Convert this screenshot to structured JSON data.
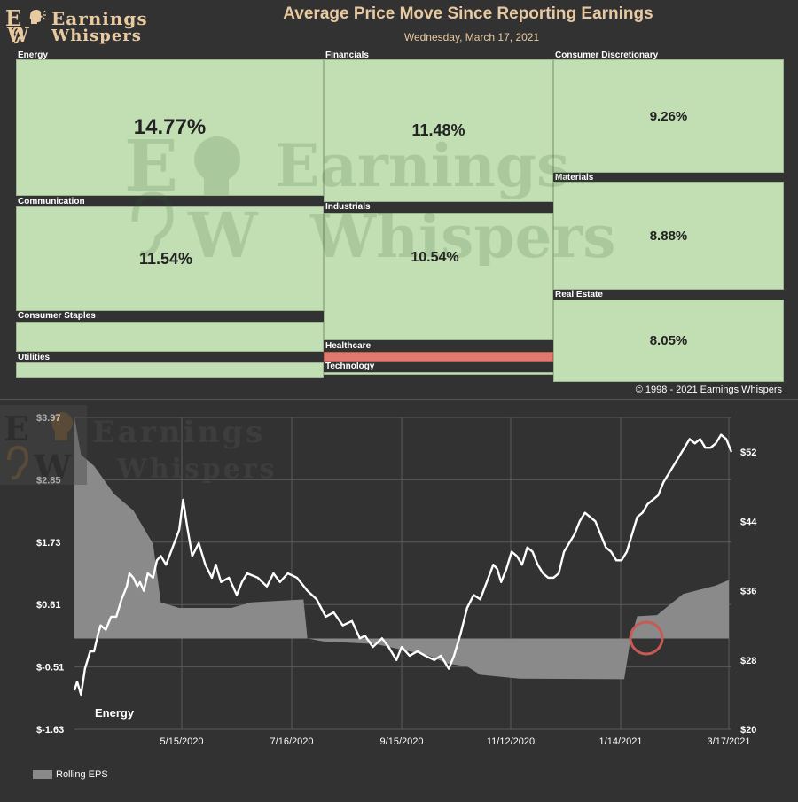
{
  "brand": {
    "logo_line1": "Earnings",
    "logo_line2": "Whispers",
    "logo_e": "E",
    "logo_w": "W"
  },
  "heatmap": {
    "title": "Average Price Move Since Reporting Earnings",
    "date": "Wednesday, March 17, 2021",
    "copyright": "© 1998 - 2021 Earnings Whispers",
    "sectors": [
      {
        "id": "energy",
        "name": "Energy",
        "value": "14.77%",
        "sign": "pos"
      },
      {
        "id": "communication",
        "name": "Communication",
        "value": "11.54%",
        "sign": "pos"
      },
      {
        "id": "consumer-staples",
        "name": "Consumer Staples",
        "value": "",
        "sign": "pos"
      },
      {
        "id": "utilities",
        "name": "Utilities",
        "value": "",
        "sign": "pos"
      },
      {
        "id": "financials",
        "name": "Financials",
        "value": "11.48%",
        "sign": "pos"
      },
      {
        "id": "industrials",
        "name": "Industrials",
        "value": "10.54%",
        "sign": "pos"
      },
      {
        "id": "healthcare",
        "name": "Healthcare",
        "value": "",
        "sign": "neg"
      },
      {
        "id": "technology",
        "name": "Technology",
        "value": "",
        "sign": "pos"
      },
      {
        "id": "consumer-discretionary",
        "name": "Consumer Discretionary",
        "value": "9.26%",
        "sign": "pos"
      },
      {
        "id": "materials",
        "name": "Materials",
        "value": "8.88%",
        "sign": "pos"
      },
      {
        "id": "real-estate",
        "name": "Real Estate",
        "value": "8.05%",
        "sign": "pos"
      }
    ]
  },
  "chart_data": {
    "type": "line",
    "title": "Energy",
    "legend": "Rolling EPS",
    "x_labels": [
      "5/15/2020",
      "7/16/2020",
      "9/15/2020",
      "11/12/2020",
      "1/14/2021",
      "3/17/2021"
    ],
    "y_left_ticks": [
      "$3.97",
      "$2.85",
      "$1.73",
      "$0.61",
      "$-0.51",
      "$-1.63"
    ],
    "y_right_ticks": [
      "$52",
      "$44",
      "$36",
      "$28",
      "$20"
    ],
    "ylim_left": [
      -1.63,
      3.97
    ],
    "ylim_right": [
      20,
      56
    ],
    "n_points": 245,
    "eps_series": [
      [
        0,
        3.97
      ],
      [
        5,
        3.3
      ],
      [
        15,
        3.1
      ],
      [
        30,
        2.6
      ],
      [
        45,
        2.3
      ],
      [
        55,
        1.9
      ],
      [
        60,
        1.7
      ],
      [
        66,
        0.65
      ],
      [
        80,
        0.55
      ],
      [
        120,
        0.55
      ],
      [
        135,
        0.65
      ],
      [
        175,
        0.7
      ],
      [
        178,
        0.0
      ],
      [
        190,
        -0.05
      ],
      [
        230,
        -0.1
      ],
      [
        250,
        -0.2
      ],
      [
        270,
        -0.3
      ],
      [
        285,
        -0.45
      ],
      [
        300,
        -0.5
      ],
      [
        310,
        -0.65
      ],
      [
        340,
        -0.72
      ],
      [
        420,
        -0.73
      ],
      [
        425,
        0.0
      ],
      [
        430,
        0.4
      ],
      [
        445,
        0.42
      ],
      [
        465,
        0.8
      ],
      [
        490,
        0.95
      ],
      [
        500,
        1.05
      ]
    ],
    "price_series": [
      [
        0,
        24.5
      ],
      [
        2,
        25.5
      ],
      [
        5,
        24
      ],
      [
        8,
        27
      ],
      [
        12,
        29
      ],
      [
        15,
        29
      ],
      [
        18,
        31
      ],
      [
        20,
        32
      ],
      [
        24,
        31.5
      ],
      [
        28,
        33
      ],
      [
        32,
        33
      ],
      [
        36,
        35
      ],
      [
        40,
        36.5
      ],
      [
        42,
        38
      ],
      [
        45,
        37.5
      ],
      [
        48,
        36.5
      ],
      [
        50,
        37
      ],
      [
        53,
        36
      ],
      [
        56,
        38
      ],
      [
        60,
        37.5
      ],
      [
        63,
        39.5
      ],
      [
        66,
        40
      ],
      [
        70,
        39
      ],
      [
        75,
        41
      ],
      [
        80,
        43
      ],
      [
        83,
        46.5
      ],
      [
        86,
        43.5
      ],
      [
        90,
        40
      ],
      [
        95,
        41.5
      ],
      [
        100,
        39
      ],
      [
        105,
        37.5
      ],
      [
        108,
        39
      ],
      [
        112,
        37
      ],
      [
        118,
        37.5
      ],
      [
        124,
        35.5
      ],
      [
        128,
        37
      ],
      [
        132,
        38
      ],
      [
        140,
        37.5
      ],
      [
        147,
        36.5
      ],
      [
        152,
        38
      ],
      [
        157,
        37
      ],
      [
        163,
        38
      ],
      [
        170,
        37.5
      ],
      [
        178,
        36
      ],
      [
        185,
        35
      ],
      [
        192,
        33
      ],
      [
        198,
        33.5
      ],
      [
        205,
        32
      ],
      [
        212,
        32.5
      ],
      [
        218,
        30.5
      ],
      [
        222,
        30.8
      ],
      [
        228,
        29.5
      ],
      [
        235,
        30.5
      ],
      [
        240,
        29.5
      ],
      [
        246,
        28
      ],
      [
        250,
        29.5
      ],
      [
        256,
        28.5
      ],
      [
        262,
        29
      ],
      [
        268,
        28.5
      ],
      [
        275,
        28
      ],
      [
        280,
        28.5
      ],
      [
        286,
        27
      ],
      [
        290,
        28.5
      ],
      [
        295,
        31
      ],
      [
        300,
        34
      ],
      [
        305,
        35.5
      ],
      [
        310,
        35
      ],
      [
        315,
        37
      ],
      [
        320,
        39
      ],
      [
        323,
        38.5
      ],
      [
        326,
        37
      ],
      [
        330,
        38.5
      ],
      [
        334,
        40.5
      ],
      [
        338,
        40
      ],
      [
        342,
        39
      ],
      [
        346,
        41
      ],
      [
        350,
        40.5
      ],
      [
        354,
        39
      ],
      [
        358,
        38
      ],
      [
        362,
        37.5
      ],
      [
        366,
        37.5
      ],
      [
        370,
        38
      ],
      [
        374,
        40.5
      ],
      [
        378,
        41.5
      ],
      [
        382,
        42.5
      ],
      [
        386,
        44
      ],
      [
        390,
        45
      ],
      [
        394,
        44.5
      ],
      [
        398,
        44
      ],
      [
        402,
        42.5
      ],
      [
        406,
        41
      ],
      [
        410,
        40.5
      ],
      [
        414,
        39.5
      ],
      [
        418,
        39.5
      ],
      [
        422,
        40.5
      ],
      [
        426,
        42.5
      ],
      [
        430,
        44.5
      ],
      [
        434,
        45
      ],
      [
        438,
        46
      ],
      [
        442,
        46.5
      ],
      [
        446,
        47
      ],
      [
        450,
        48.5
      ],
      [
        454,
        49.5
      ],
      [
        458,
        50.5
      ],
      [
        462,
        51.5
      ],
      [
        466,
        52.5
      ],
      [
        470,
        53.5
      ],
      [
        474,
        53
      ],
      [
        478,
        53.5
      ],
      [
        482,
        52.5
      ],
      [
        486,
        52.5
      ],
      [
        490,
        53
      ],
      [
        494,
        54
      ],
      [
        498,
        53.5
      ],
      [
        502,
        52
      ]
    ]
  }
}
